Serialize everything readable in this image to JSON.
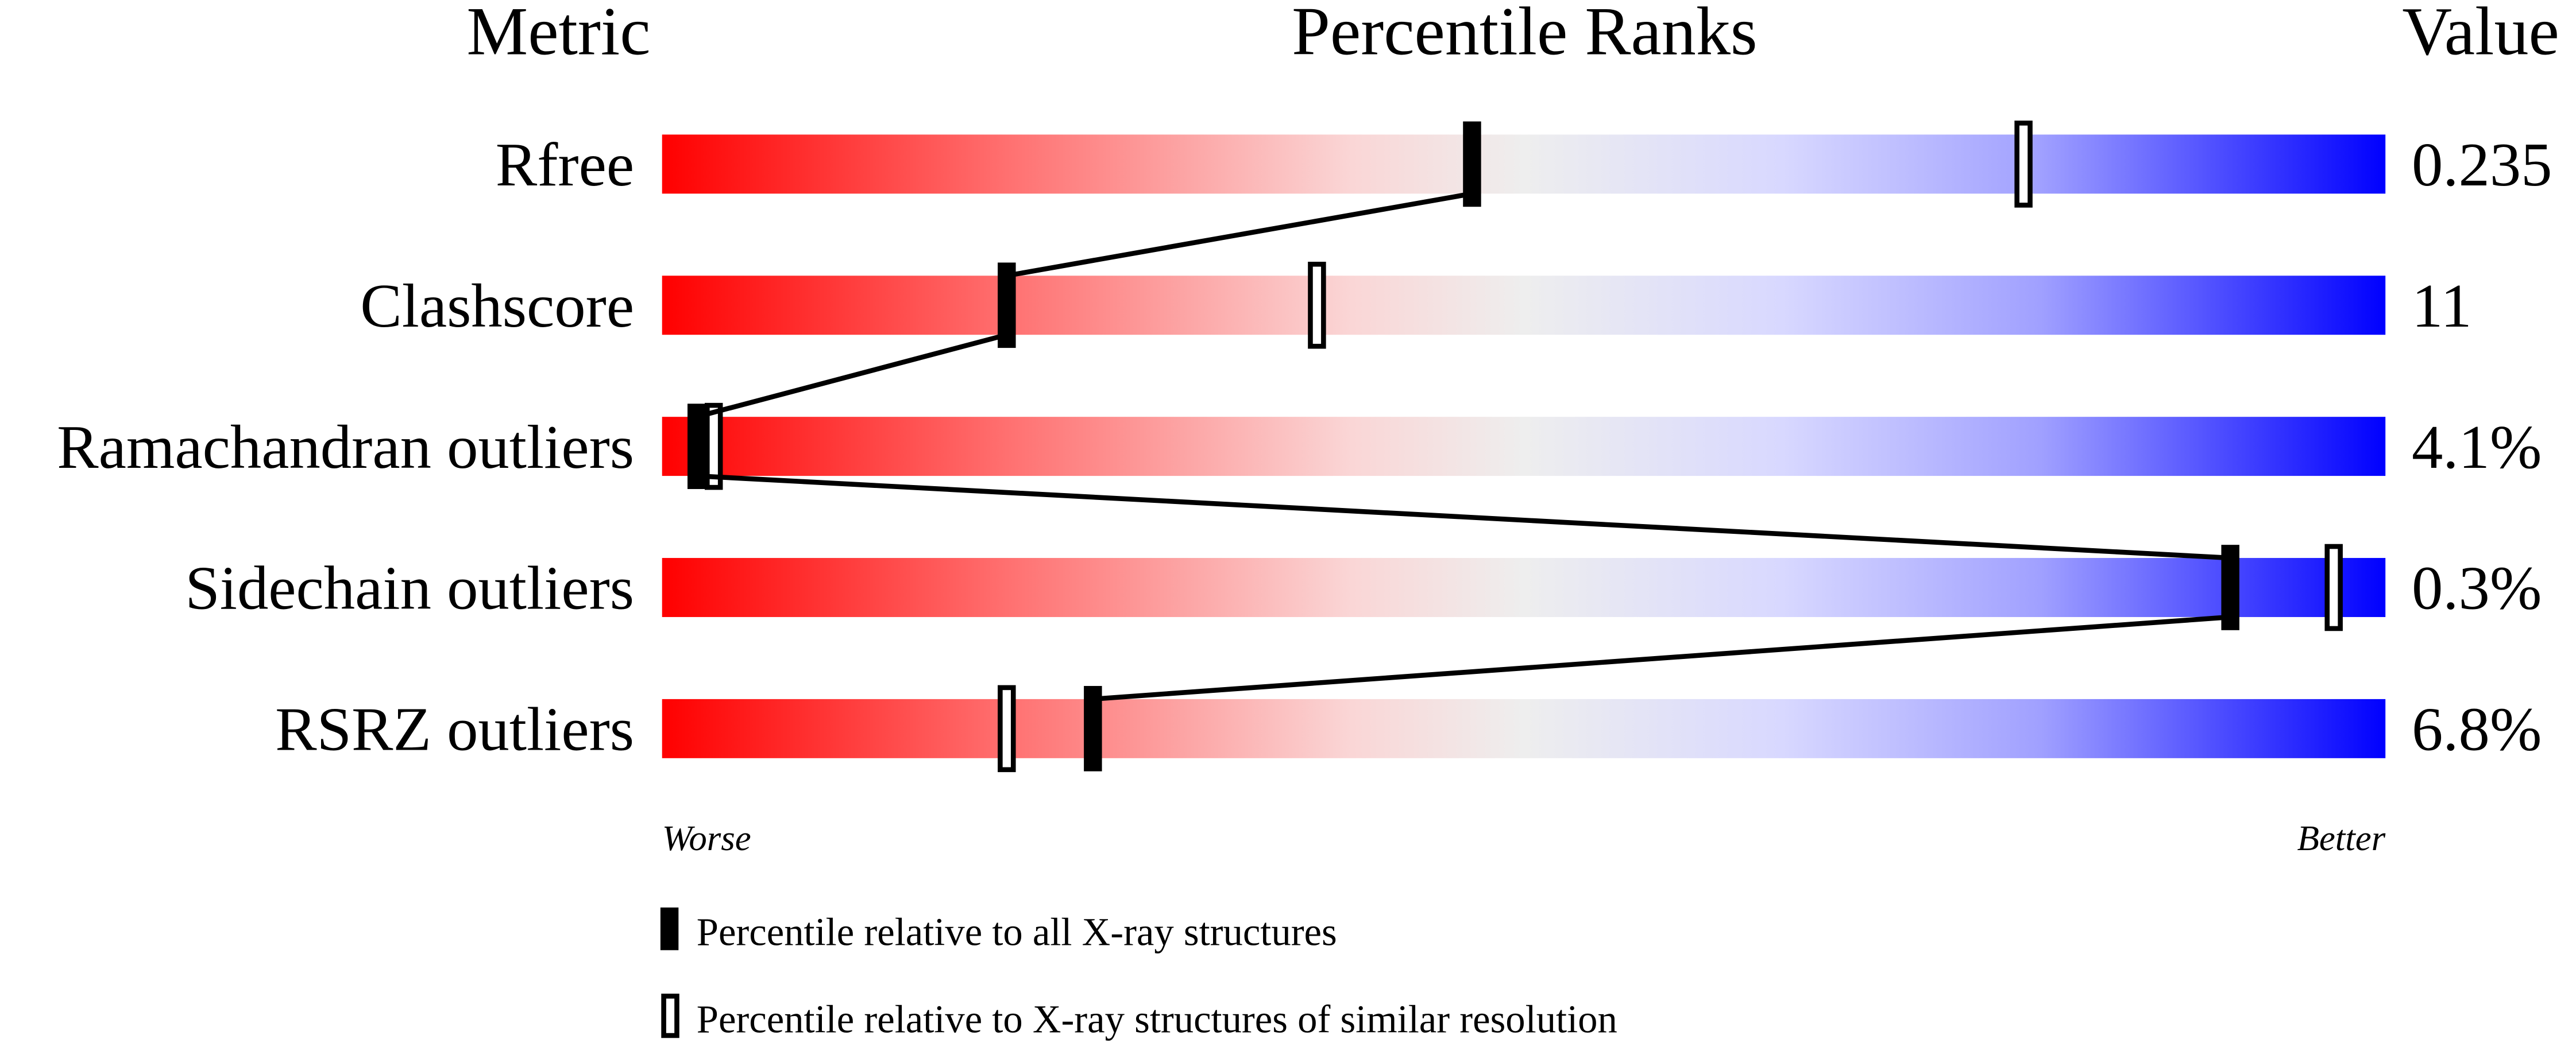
{
  "chart_data": {
    "type": "percentile-slider",
    "headers": {
      "metric": "Metric",
      "ranks": "Percentile Ranks",
      "value": "Value"
    },
    "xlim": [
      0,
      100
    ],
    "rows": [
      {
        "metric": "Rfree",
        "value": "0.235",
        "percentile_all": 47,
        "percentile_similar": 79
      },
      {
        "metric": "Clashscore",
        "value": "11",
        "percentile_all": 20,
        "percentile_similar": 38
      },
      {
        "metric": "Ramachandran outliers",
        "value": "4.1%",
        "percentile_all": 2,
        "percentile_similar": 3
      },
      {
        "metric": "Sidechain outliers",
        "value": "0.3%",
        "percentile_all": 91,
        "percentile_similar": 97
      },
      {
        "metric": "RSRZ outliers",
        "value": "6.8%",
        "percentile_all": 25,
        "percentile_similar": 20
      }
    ],
    "axis_labels": {
      "worse": "Worse",
      "better": "Better"
    },
    "legend": {
      "all": "Percentile relative to all X-ray structures",
      "similar": "Percentile relative to X-ray structures of similar resolution"
    },
    "colors": {
      "worse": "#ff0000",
      "middle": "#eeeeee",
      "better": "#0000ff",
      "marker": "#000000"
    }
  }
}
